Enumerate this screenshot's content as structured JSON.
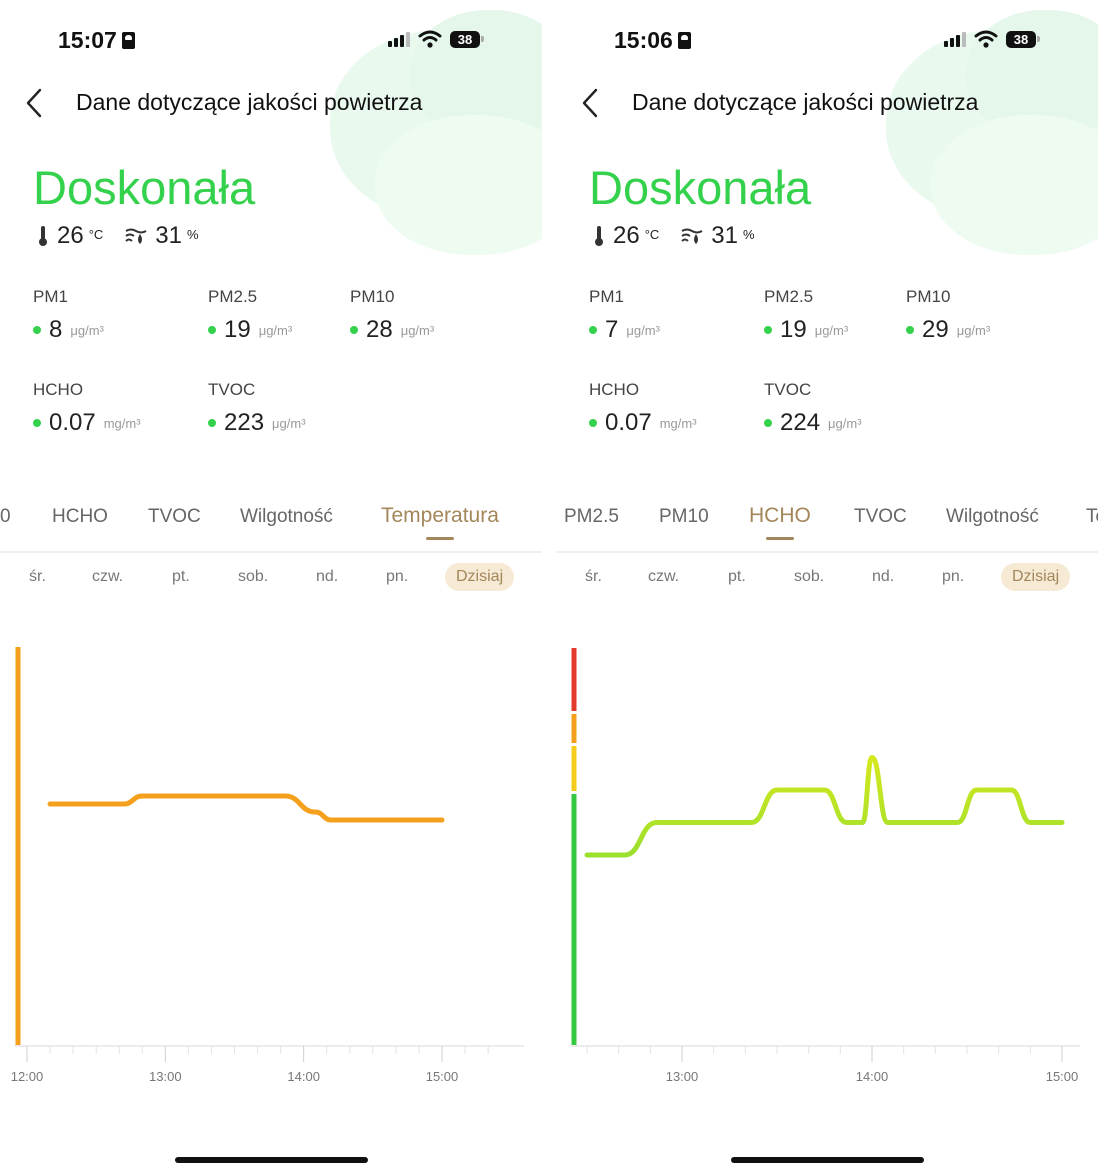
{
  "screens": [
    {
      "status": {
        "time": "15:07",
        "battery": "38"
      },
      "nav": {
        "title": "Dane dotyczące jakości powietrza"
      },
      "quality": "Doskonała",
      "env": {
        "temp": "26",
        "temp_unit": "°C",
        "humidity": "31",
        "humidity_unit": "%"
      },
      "metrics": [
        {
          "label": "PM1",
          "value": "8",
          "unit": "μg/m³"
        },
        {
          "label": "PM2.5",
          "value": "19",
          "unit": "μg/m³"
        },
        {
          "label": "PM10",
          "value": "28",
          "unit": "μg/m³"
        },
        {
          "label": "HCHO",
          "value": "0.07",
          "unit": "mg/m³"
        },
        {
          "label": "TVOC",
          "value": "223",
          "unit": "μg/m³"
        }
      ],
      "tabs": [
        "0",
        "HCHO",
        "TVOC",
        "Wilgotność",
        "Temperatura"
      ],
      "active_tab": "Temperatura",
      "days": [
        "śr.",
        "czw.",
        "pt.",
        "sob.",
        "nd.",
        "pn.",
        "Dzisiaj"
      ],
      "active_day": "Dzisiaj",
      "chart_data": {
        "type": "line",
        "series_name": "Temperatura",
        "x_ticks": [
          "12:00",
          "13:00",
          "14:00",
          "15:00"
        ],
        "x": [
          "12:10",
          "12:42",
          "12:50",
          "13:52",
          "14:05",
          "14:12",
          "15:00"
        ],
        "y_relative": [
          0.2,
          0.2,
          0.3,
          0.3,
          0.1,
          0.0,
          0.0
        ],
        "line_color": "#f4a01c",
        "axis_color": "#f4a01c"
      }
    },
    {
      "status": {
        "time": "15:06",
        "battery": "38"
      },
      "nav": {
        "title": "Dane dotyczące jakości powietrza"
      },
      "quality": "Doskonała",
      "env": {
        "temp": "26",
        "temp_unit": "°C",
        "humidity": "31",
        "humidity_unit": "%"
      },
      "metrics": [
        {
          "label": "PM1",
          "value": "7",
          "unit": "μg/m³"
        },
        {
          "label": "PM2.5",
          "value": "19",
          "unit": "μg/m³"
        },
        {
          "label": "PM10",
          "value": "29",
          "unit": "μg/m³"
        },
        {
          "label": "HCHO",
          "value": "0.07",
          "unit": "mg/m³"
        },
        {
          "label": "TVOC",
          "value": "224",
          "unit": "μg/m³"
        }
      ],
      "tabs": [
        "PM2.5",
        "PM10",
        "HCHO",
        "TVOC",
        "Wilgotność",
        "Te"
      ],
      "active_tab": "HCHO",
      "days": [
        "śr.",
        "czw.",
        "pt.",
        "sob.",
        "nd.",
        "pn.",
        "Dzisiaj"
      ],
      "active_day": "Dzisiaj",
      "chart_data": {
        "type": "line",
        "series_name": "HCHO",
        "x_ticks": [
          "13:00",
          "14:00",
          "15:00"
        ],
        "x": [
          "12:30",
          "12:42",
          "12:52",
          "13:22",
          "13:30",
          "13:45",
          "13:52",
          "13:57",
          "14:00",
          "14:05",
          "14:20",
          "14:27",
          "14:33",
          "14:44",
          "14:50",
          "15:00"
        ],
        "y_relative": [
          0.0,
          0.0,
          0.25,
          0.25,
          0.5,
          0.5,
          0.25,
          0.25,
          0.75,
          0.25,
          0.25,
          0.25,
          0.5,
          0.5,
          0.25,
          0.25
        ],
        "line_color_low": "#9be02c",
        "line_color_high": "#d6e81e",
        "scale_colors": [
          "#e23b2e",
          "#f5a01c",
          "#f5cc1c",
          "#34c940"
        ]
      }
    }
  ]
}
